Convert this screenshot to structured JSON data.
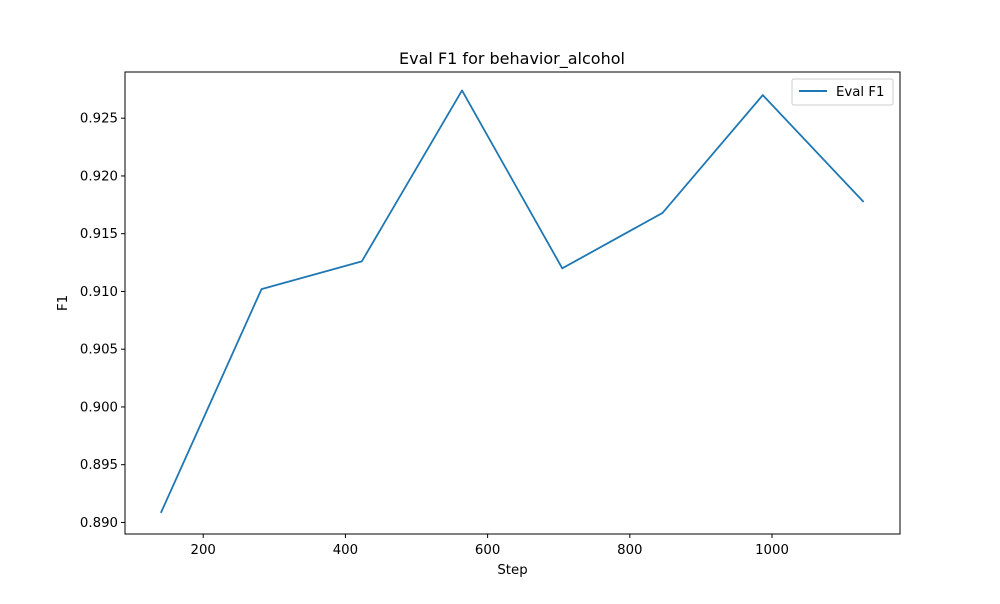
{
  "chart_data": {
    "type": "line",
    "title": "Eval F1 for behavior_alcohol",
    "xlabel": "Step",
    "ylabel": "F1",
    "xlim": [
      90,
      1180
    ],
    "ylim": [
      0.889,
      0.929
    ],
    "xticks": [
      200,
      400,
      600,
      800,
      1000
    ],
    "xtick_labels": [
      "200",
      "400",
      "600",
      "800",
      "1000"
    ],
    "yticks": [
      0.89,
      0.895,
      0.9,
      0.905,
      0.91,
      0.915,
      0.92,
      0.925
    ],
    "ytick_labels": [
      "0.890",
      "0.895",
      "0.900",
      "0.905",
      "0.910",
      "0.915",
      "0.920",
      "0.925"
    ],
    "grid": false,
    "legend_position": "top-right",
    "series": [
      {
        "name": "Eval F1",
        "color": "#1f77b4",
        "x": [
          141,
          282,
          423,
          564,
          705,
          846,
          987,
          1128
        ],
        "values": [
          0.8909,
          0.9102,
          0.9126,
          0.9274,
          0.912,
          0.9168,
          0.927,
          0.9178
        ]
      }
    ]
  }
}
